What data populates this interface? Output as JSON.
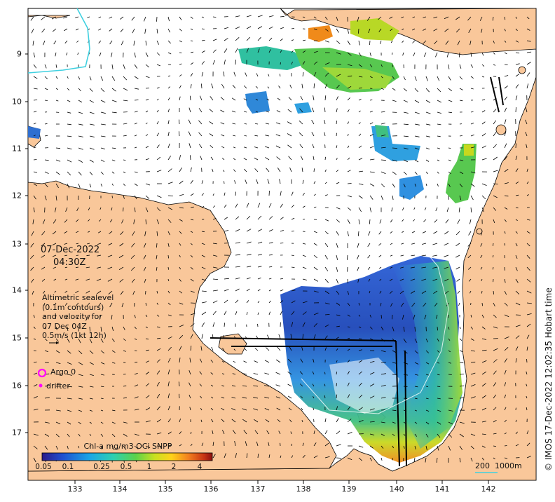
{
  "map": {
    "date": "07-Dec-2022",
    "time": "04:30Z",
    "altimetry_legend": [
      "Altimetric sealevel",
      "(0.1m contours)",
      "and velocity for",
      "07 Dec 04Z",
      "0.5m/s (1kt 12h)"
    ],
    "argo_label": "Argo 0",
    "drifter_label": "drifter",
    "colorbar_title": "Chl-a mg/m3 OCi SNPP",
    "colorbar_ticks": [
      "0.05",
      "0.1",
      "0.25",
      "0.5",
      "1",
      "2",
      "4"
    ],
    "lon_ticks": [
      "133",
      "134",
      "135",
      "136",
      "137",
      "138",
      "139",
      "140",
      "141",
      "142"
    ],
    "lat_ticks": [
      "9",
      "10",
      "11",
      "12",
      "13",
      "14",
      "15",
      "16",
      "17"
    ],
    "scale_label": "200  1000m",
    "credit": "© IMOS 17-Dec-2022 12:02:35 Hobart time",
    "colors": {
      "land": "#f9c79a",
      "sea": "#ffffff",
      "coastline": "#000000",
      "argo": "#ff00ff",
      "contour": "#40d0e0"
    }
  }
}
